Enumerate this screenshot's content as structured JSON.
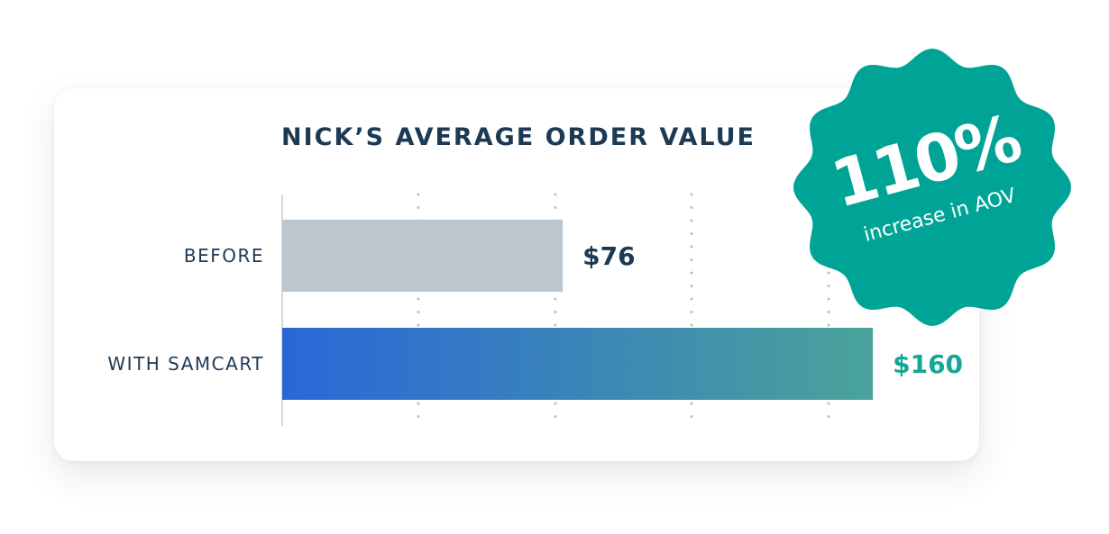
{
  "chart_data": {
    "type": "bar",
    "orientation": "horizontal",
    "title": "NICK’S AVERAGE ORDER VALUE",
    "categories": [
      "BEFORE",
      "WITH SAMCART"
    ],
    "values": [
      76,
      160
    ],
    "value_labels": [
      "$76",
      "$160"
    ],
    "xlim": [
      0,
      180
    ],
    "grid": true,
    "gridlines_at": [
      37,
      74,
      111,
      148
    ],
    "colors": {
      "before_bar": "#bcc6cf",
      "samcart_gradient_start": "#2a67d8",
      "samcart_gradient_end": "#4aa399",
      "before_value": "#1d3a55",
      "samcart_value": "#12a796",
      "category_text": "#1d3a55"
    }
  },
  "badge": {
    "percent": "110%",
    "caption": "increase in AOV",
    "color": "#00a496",
    "shape": "scalloped-seal"
  }
}
